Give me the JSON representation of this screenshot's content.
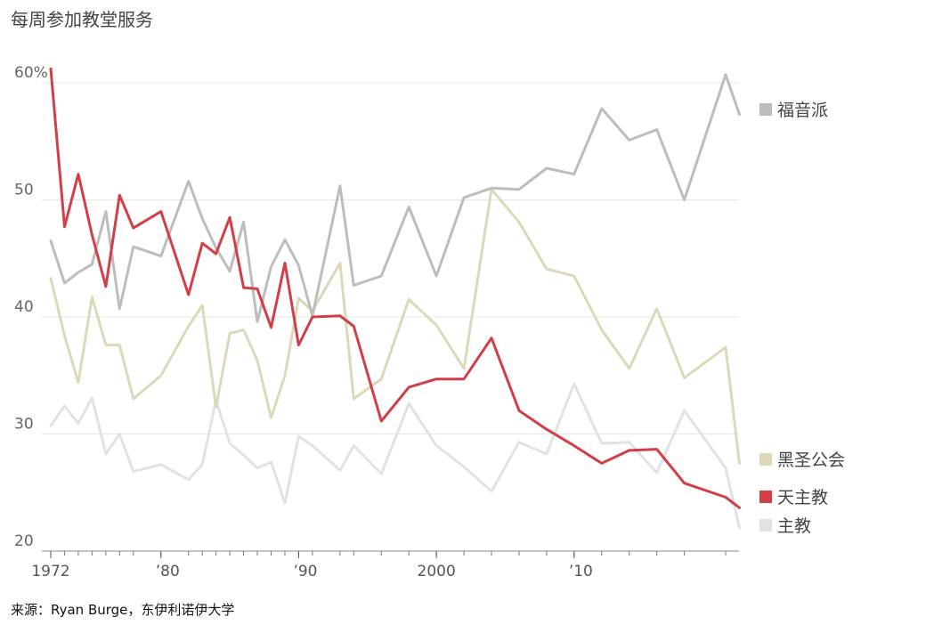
{
  "title": "每周参加教堂服务",
  "source": "来源：Ryan Burge，东伊利诺伊大学",
  "chart_data": {
    "type": "line",
    "title": "每周参加教堂服务",
    "xlim": [
      1972,
      2021
    ],
    "ylim": [
      20,
      61
    ],
    "y_ticks": [
      {
        "value": 60,
        "label": "60%"
      },
      {
        "value": 50,
        "label": "50"
      },
      {
        "value": 40,
        "label": "40"
      },
      {
        "value": 30,
        "label": "30"
      },
      {
        "value": 20,
        "label": "20"
      }
    ],
    "x_ticks": [
      {
        "value": 1972,
        "label": "1972"
      },
      {
        "value": 1980,
        "label": "’80"
      },
      {
        "value": 1990,
        "label": "’90"
      },
      {
        "value": 2000,
        "label": "2000"
      },
      {
        "value": 2010,
        "label": "’10"
      }
    ],
    "minor_x_ticks": [
      1972,
      1973,
      1974,
      1975,
      1976,
      1977,
      1978,
      1980,
      1982,
      1983,
      1984,
      1985,
      1986,
      1987,
      1988,
      1989,
      1990,
      1991,
      1993,
      1994,
      1996,
      1998,
      2000,
      2002,
      2004,
      2006,
      2008,
      2010,
      2012,
      2014,
      2016,
      2018,
      2021
    ],
    "grid": true,
    "legend": "right",
    "series": [
      {
        "name": "主教",
        "color": "#e2e2e2",
        "x": [
          1972,
          1973,
          1974,
          1975,
          1976,
          1977,
          1978,
          1980,
          1982,
          1983,
          1984,
          1985,
          1986,
          1987,
          1988,
          1989,
          1990,
          1991,
          1993,
          1994,
          1996,
          1998,
          2000,
          2002,
          2004,
          2006,
          2008,
          2010,
          2012,
          2014,
          2016,
          2018,
          2021,
          2022
        ],
        "y": [
          30.7,
          32.4,
          30.9,
          33.1,
          28.3,
          30.0,
          26.8,
          27.4,
          26.1,
          27.4,
          32.9,
          29.2,
          28.2,
          27.1,
          27.6,
          24.1,
          29.8,
          29.0,
          26.9,
          29.0,
          26.6,
          32.6,
          29.0,
          27.2,
          25.1,
          29.3,
          28.3,
          34.3,
          29.2,
          29.3,
          26.7,
          32.0,
          27.1,
          22.0
        ]
      },
      {
        "name": "黑圣公会",
        "color": "#ddd8b8",
        "x": [
          1972,
          1973,
          1974,
          1975,
          1976,
          1977,
          1978,
          1980,
          1982,
          1983,
          1984,
          1985,
          1986,
          1987,
          1988,
          1989,
          1990,
          1991,
          1993,
          1994,
          1996,
          1998,
          2000,
          2002,
          2004,
          2006,
          2008,
          2010,
          2012,
          2014,
          2016,
          2018,
          2021,
          2022
        ],
        "y": [
          43.3,
          38.4,
          34.4,
          41.7,
          37.6,
          37.6,
          33.0,
          35.0,
          39.2,
          41.0,
          32.3,
          38.6,
          38.9,
          36.3,
          31.4,
          35.0,
          41.6,
          40.5,
          44.6,
          33.0,
          34.7,
          41.5,
          39.3,
          35.6,
          50.9,
          48.1,
          44.1,
          43.5,
          38.9,
          35.6,
          40.7,
          34.8,
          37.4,
          27.5
        ]
      },
      {
        "name": "福音派",
        "color": "#bdbdbd",
        "x": [
          1972,
          1973,
          1974,
          1975,
          1976,
          1977,
          1978,
          1980,
          1982,
          1983,
          1984,
          1985,
          1986,
          1987,
          1988,
          1989,
          1990,
          1991,
          1993,
          1994,
          1996,
          1998,
          2000,
          2002,
          2004,
          2006,
          2008,
          2010,
          2012,
          2014,
          2016,
          2018,
          2021,
          2022
        ],
        "y": [
          46.5,
          42.9,
          43.8,
          44.5,
          49.0,
          40.7,
          46.0,
          45.2,
          51.6,
          48.4,
          45.9,
          43.9,
          48.1,
          39.6,
          44.3,
          46.6,
          44.4,
          40.1,
          51.2,
          42.7,
          43.5,
          49.4,
          43.5,
          50.2,
          51.0,
          50.9,
          52.7,
          52.2,
          57.8,
          55.1,
          56.0,
          50.0,
          60.7,
          57.3
        ]
      },
      {
        "name": "天主教",
        "color": "#d23f47",
        "x": [
          1972,
          1973,
          1974,
          1975,
          1976,
          1977,
          1978,
          1980,
          1982,
          1983,
          1984,
          1985,
          1986,
          1987,
          1988,
          1989,
          1990,
          1991,
          1993,
          1994,
          1996,
          1998,
          2000,
          2002,
          2004,
          2006,
          2008,
          2010,
          2012,
          2014,
          2016,
          2018,
          2021,
          2022
        ],
        "y": [
          61.2,
          47.7,
          52.2,
          47.0,
          42.6,
          50.4,
          47.6,
          49.0,
          41.9,
          46.3,
          45.4,
          48.5,
          42.5,
          42.4,
          39.1,
          44.6,
          37.6,
          40.0,
          40.1,
          39.2,
          31.1,
          34.0,
          34.7,
          34.7,
          38.2,
          32.0,
          30.4,
          29.0,
          27.5,
          28.6,
          28.7,
          25.8,
          24.6,
          23.7
        ]
      }
    ],
    "legend_entries": [
      {
        "name": "福音派",
        "color": "#bdbdbd"
      },
      {
        "name": "黑圣公会",
        "color": "#ddd8b8"
      },
      {
        "name": "天主教",
        "color": "#d23f47"
      },
      {
        "name": "主教",
        "color": "#e2e2e2"
      }
    ]
  }
}
